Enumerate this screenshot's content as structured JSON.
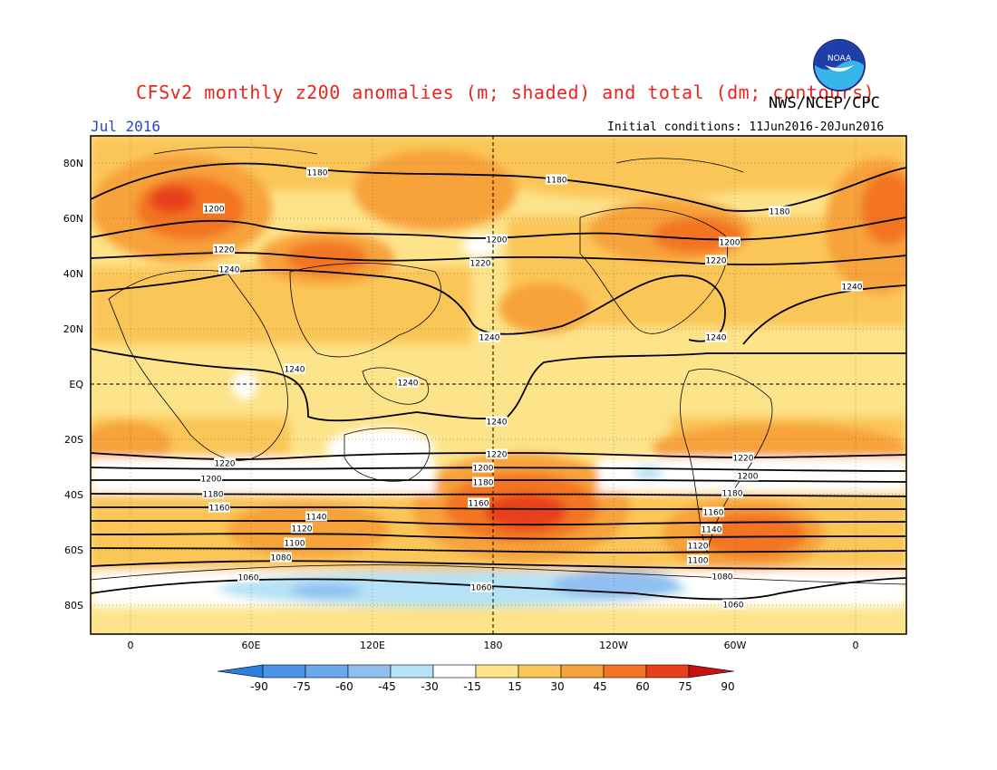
{
  "header": {
    "title": "CFSv2 monthly z200 anomalies (m; shaded) and total (dm; contours)",
    "org": "NWS/NCEP/CPC",
    "month": "Jul 2016",
    "init": "Initial conditions: 11Jun2016-20Jun2016"
  },
  "logo": {
    "text": "NOAA",
    "icon": "noaa-logo"
  },
  "axes": {
    "y_ticks": [
      "80N",
      "60N",
      "40N",
      "20N",
      "EQ",
      "20S",
      "40S",
      "60S",
      "80S"
    ],
    "x_ticks": [
      "0",
      "60E",
      "120E",
      "180",
      "120W",
      "60W",
      "0"
    ]
  },
  "colorbar": {
    "labels": [
      "-90",
      "-75",
      "-60",
      "-45",
      "-30",
      "-15",
      "15",
      "30",
      "45",
      "60",
      "75",
      "90"
    ],
    "colors": [
      "#2a7fe0",
      "#4a93e6",
      "#6aa8ec",
      "#8fc0f0",
      "#b5e2f4",
      "#ffffff",
      "#fde38a",
      "#fbc659",
      "#f7a23a",
      "#f37422",
      "#e8401a",
      "#c4140f"
    ]
  },
  "contour_labels": [
    {
      "text": "1180"
    },
    {
      "text": "1180"
    },
    {
      "text": "1180"
    },
    {
      "text": "1200"
    },
    {
      "text": "1200"
    },
    {
      "text": "1200"
    },
    {
      "text": "1220"
    },
    {
      "text": "1220"
    },
    {
      "text": "1220"
    },
    {
      "text": "1240"
    },
    {
      "text": "1240"
    },
    {
      "text": "1240"
    },
    {
      "text": "1240"
    },
    {
      "text": "1240"
    },
    {
      "text": "1240"
    },
    {
      "text": "1240"
    },
    {
      "text": "1220"
    },
    {
      "text": "1220"
    },
    {
      "text": "1220"
    },
    {
      "text": "1200"
    },
    {
      "text": "1200"
    },
    {
      "text": "1200"
    },
    {
      "text": "1180"
    },
    {
      "text": "1180"
    },
    {
      "text": "1180"
    },
    {
      "text": "1160"
    },
    {
      "text": "1160"
    },
    {
      "text": "1160"
    },
    {
      "text": "1140"
    },
    {
      "text": "1140"
    },
    {
      "text": "1120"
    },
    {
      "text": "1120"
    },
    {
      "text": "1100"
    },
    {
      "text": "1100"
    },
    {
      "text": "1080"
    },
    {
      "text": "1080"
    },
    {
      "text": "1060"
    },
    {
      "text": "1060"
    },
    {
      "text": "1060"
    }
  ]
}
